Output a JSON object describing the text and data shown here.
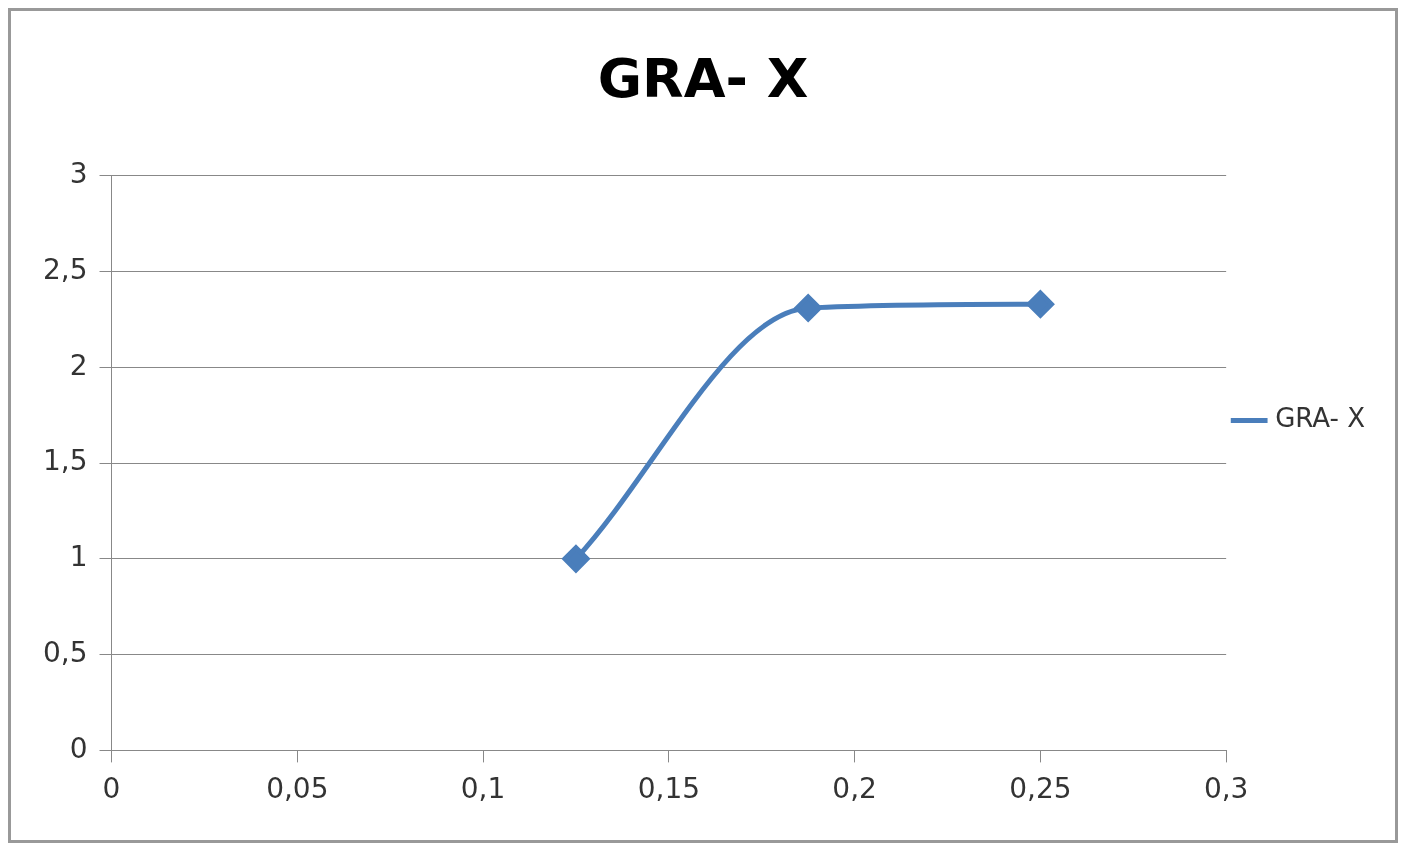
{
  "chart_data": {
    "type": "line",
    "title": "GRA- X",
    "x": [
      0.125,
      0.1875,
      0.25
    ],
    "series": [
      {
        "name": "GRA- X",
        "color": "#4a7ebb",
        "values": [
          1,
          2.31,
          2.33
        ]
      }
    ],
    "xlim": [
      0,
      0.3
    ],
    "xticks": [
      0,
      {
        "value": 0.05,
        "label": "0,05"
      },
      {
        "value": 0.1,
        "label": "0,1"
      },
      {
        "value": 0.15,
        "label": "0,15"
      },
      {
        "value": 0.2,
        "label": "0,2"
      },
      {
        "value": 0.25,
        "label": "0,25"
      },
      {
        "value": 0.3,
        "label": "0,3"
      }
    ],
    "ylim": [
      0,
      3
    ],
    "yticks": [
      0,
      {
        "value": 0.5,
        "label": "0,5"
      },
      1,
      {
        "value": 1.5,
        "label": "1,5"
      },
      2,
      {
        "value": 2.5,
        "label": "2,5"
      },
      3
    ],
    "grid": "y",
    "legend": "right",
    "marker": "diamond",
    "line_style": "solid"
  }
}
